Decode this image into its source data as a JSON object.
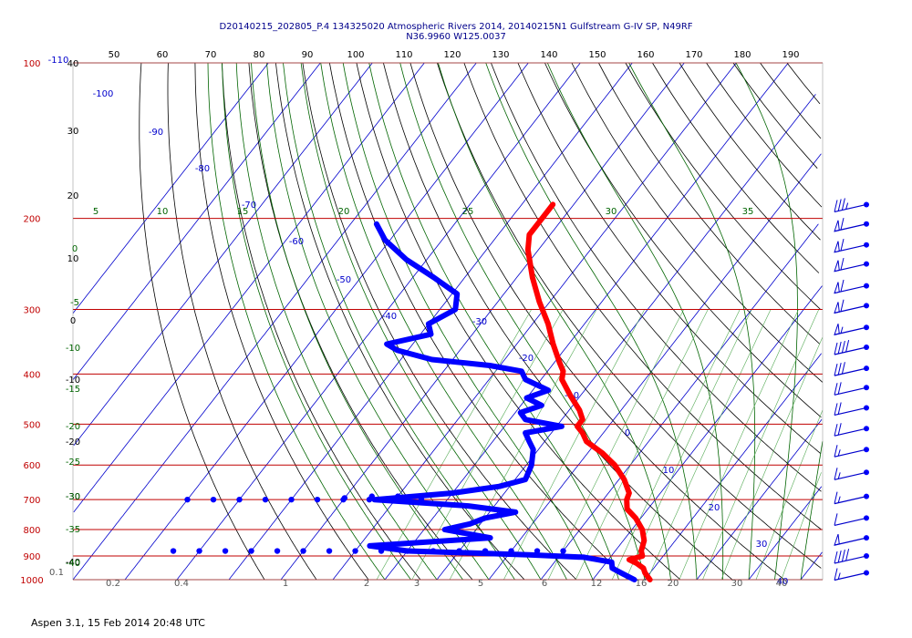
{
  "header": {
    "line1": "D20140215_202805_P.4 134325020 Atmospheric Rivers 2014, 20140215N1 Gulfstream G-IV SP, N49RF",
    "line2": "N36.9960 W125.0037"
  },
  "footer": {
    "text": "Aspen 3.1, 15 Feb 2014  20:48 UTC"
  },
  "colors": {
    "isobar": "#c00000",
    "isotherm": "#0000cc",
    "dry_adiabat": "#000000",
    "moist_adiabat": "#006400",
    "mixing_ratio": "#008000",
    "temperature": "#ff0000",
    "dewpoint": "#0000ff"
  },
  "chart_data": {
    "type": "line",
    "subtype": "skew-t log-p thermodynamic diagram",
    "y_axis": {
      "label": "",
      "scale": "log",
      "ticks": [
        100,
        200,
        300,
        400,
        500,
        600,
        700,
        800,
        900,
        1000
      ],
      "range": [
        100,
        1000
      ]
    },
    "top_ticks": [
      "50",
      "60",
      "70",
      "80",
      "90",
      "100",
      "110",
      "120",
      "130",
      "140",
      "150",
      "160",
      "170",
      "180",
      "190"
    ],
    "isotherm_labels": [
      "-110",
      "-100",
      "-90",
      "-80",
      "-70",
      "-60",
      "-50",
      "-40",
      "-30",
      "-20",
      "-10",
      "0",
      "10",
      "20",
      "30",
      "40"
    ],
    "mixing_ratio_labels": [
      "0.1",
      "0.2",
      "0.4",
      "1",
      "2",
      "3",
      "5",
      "6",
      "12",
      "16",
      "20",
      "30",
      "40"
    ],
    "dry_adiabat_labels": [
      "40",
      "30",
      "20",
      "10",
      "0",
      "-10",
      "-20",
      "-30",
      "-40"
    ],
    "moist_adiabat_labels": [
      "5",
      "10",
      "15",
      "20",
      "25",
      "30",
      "35",
      "0",
      "-5",
      "-10",
      "-15",
      "-20",
      "-25",
      "-30",
      "-35",
      "-40"
    ],
    "grid": true,
    "series": [
      {
        "key": "temperature",
        "points": [
          [
            188,
            -64
          ],
          [
            200,
            -64
          ],
          [
            215,
            -64
          ],
          [
            230,
            -62
          ],
          [
            260,
            -57
          ],
          [
            290,
            -52
          ],
          [
            320,
            -47
          ],
          [
            350,
            -43
          ],
          [
            380,
            -39
          ],
          [
            395,
            -37
          ],
          [
            410,
            -36
          ],
          [
            440,
            -32
          ],
          [
            470,
            -28
          ],
          [
            490,
            -26
          ],
          [
            505,
            -26
          ],
          [
            520,
            -24
          ],
          [
            540,
            -22
          ],
          [
            570,
            -17
          ],
          [
            600,
            -13
          ],
          [
            640,
            -9
          ],
          [
            680,
            -6
          ],
          [
            700,
            -5.5
          ],
          [
            730,
            -4
          ],
          [
            760,
            -1
          ],
          [
            800,
            2
          ],
          [
            840,
            4
          ],
          [
            880,
            5
          ],
          [
            900,
            6
          ],
          [
            915,
            4
          ],
          [
            930,
            6
          ],
          [
            950,
            8
          ],
          [
            970,
            9
          ],
          [
            985,
            10
          ],
          [
            1000,
            11
          ]
        ]
      },
      {
        "key": "dewpoint",
        "points": [
          [
            205,
            -95
          ],
          [
            220,
            -91
          ],
          [
            240,
            -84
          ],
          [
            260,
            -76
          ],
          [
            280,
            -69
          ],
          [
            300,
            -67
          ],
          [
            320,
            -70
          ],
          [
            335,
            -68
          ],
          [
            350,
            -75
          ],
          [
            360,
            -72
          ],
          [
            375,
            -64
          ],
          [
            385,
            -52
          ],
          [
            395,
            -45
          ],
          [
            410,
            -43
          ],
          [
            430,
            -37
          ],
          [
            445,
            -40
          ],
          [
            460,
            -36
          ],
          [
            475,
            -39
          ],
          [
            490,
            -37
          ],
          [
            505,
            -29
          ],
          [
            520,
            -35
          ],
          [
            540,
            -33
          ],
          [
            560,
            -31
          ],
          [
            600,
            -29
          ],
          [
            640,
            -28
          ],
          [
            660,
            -32
          ],
          [
            680,
            -40
          ],
          [
            700,
            -54
          ],
          [
            720,
            -35
          ],
          [
            740,
            -25
          ],
          [
            760,
            -30
          ],
          [
            780,
            -32
          ],
          [
            800,
            -36
          ],
          [
            830,
            -26
          ],
          [
            860,
            -48
          ],
          [
            880,
            -40
          ],
          [
            895,
            -16
          ],
          [
            905,
            -5
          ],
          [
            925,
            1
          ],
          [
            950,
            2
          ],
          [
            975,
            5
          ],
          [
            1000,
            8
          ]
        ]
      },
      {
        "key": "dewpoint-scatter-700",
        "points": [
          [
            700,
            -90
          ],
          [
            700,
            -85
          ],
          [
            700,
            -80
          ],
          [
            700,
            -75
          ],
          [
            700,
            -70
          ],
          [
            700,
            -65
          ],
          [
            700,
            -60
          ],
          [
            700,
            -55
          ],
          [
            700,
            -50
          ],
          [
            700,
            -45
          ],
          [
            690,
            -55
          ],
          [
            690,
            -50
          ],
          [
            695,
            -60
          ],
          [
            695,
            -48
          ]
        ]
      },
      {
        "key": "dewpoint-scatter-880",
        "points": [
          [
            880,
            -85
          ],
          [
            880,
            -80
          ],
          [
            880,
            -75
          ],
          [
            880,
            -70
          ],
          [
            880,
            -65
          ],
          [
            880,
            -60
          ],
          [
            880,
            -55
          ],
          [
            880,
            -50
          ],
          [
            880,
            -45
          ],
          [
            880,
            -40
          ],
          [
            880,
            -35
          ],
          [
            880,
            -30
          ],
          [
            880,
            -25
          ],
          [
            880,
            -20
          ],
          [
            880,
            -15
          ],
          [
            880,
            -10
          ]
        ]
      }
    ],
    "wind_barbs": [
      {
        "pressure": 188,
        "speed_kt": 35
      },
      {
        "pressure": 205,
        "speed_kt": 60
      },
      {
        "pressure": 225,
        "speed_kt": 60
      },
      {
        "pressure": 245,
        "speed_kt": 60
      },
      {
        "pressure": 270,
        "speed_kt": 60
      },
      {
        "pressure": 295,
        "speed_kt": 60
      },
      {
        "pressure": 325,
        "speed_kt": 55
      },
      {
        "pressure": 355,
        "speed_kt": 40
      },
      {
        "pressure": 390,
        "speed_kt": 30
      },
      {
        "pressure": 425,
        "speed_kt": 20
      },
      {
        "pressure": 465,
        "speed_kt": 20
      },
      {
        "pressure": 510,
        "speed_kt": 20
      },
      {
        "pressure": 560,
        "speed_kt": 15
      },
      {
        "pressure": 620,
        "speed_kt": 15
      },
      {
        "pressure": 690,
        "speed_kt": 15
      },
      {
        "pressure": 760,
        "speed_kt": 10
      },
      {
        "pressure": 830,
        "speed_kt": 50
      },
      {
        "pressure": 900,
        "speed_kt": 40
      },
      {
        "pressure": 970,
        "speed_kt": 15
      }
    ]
  }
}
